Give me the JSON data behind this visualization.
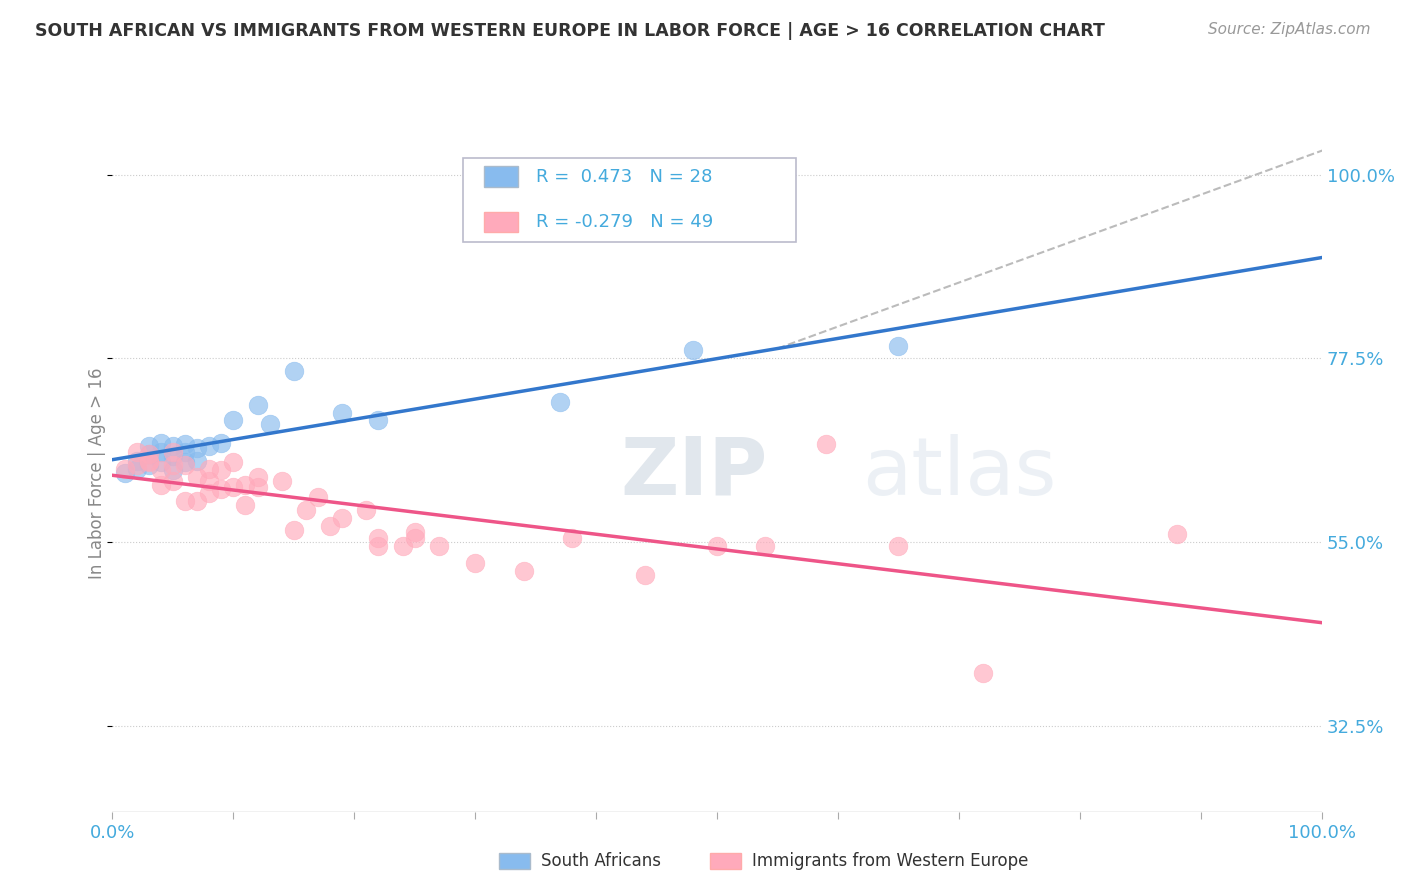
{
  "title": "SOUTH AFRICAN VS IMMIGRANTS FROM WESTERN EUROPE IN LABOR FORCE | AGE > 16 CORRELATION CHART",
  "source": "Source: ZipAtlas.com",
  "ylabel": "In Labor Force | Age > 16",
  "legend1_r": " 0.473",
  "legend1_n": "28",
  "legend2_r": "-0.279",
  "legend2_n": "49",
  "blue_color": "#88BBEE",
  "pink_color": "#FFAABB",
  "trend_blue": "#3377CC",
  "trend_pink": "#EE5588",
  "trend_gray": "#BBBBBB",
  "south_africans_x": [
    0.01,
    0.02,
    0.02,
    0.03,
    0.03,
    0.03,
    0.04,
    0.04,
    0.04,
    0.05,
    0.05,
    0.05,
    0.06,
    0.06,
    0.06,
    0.07,
    0.07,
    0.08,
    0.09,
    0.1,
    0.12,
    0.13,
    0.15,
    0.19,
    0.22,
    0.37,
    0.48,
    0.65
  ],
  "south_africans_y": [
    0.635,
    0.64,
    0.65,
    0.645,
    0.658,
    0.668,
    0.648,
    0.66,
    0.672,
    0.638,
    0.655,
    0.668,
    0.648,
    0.66,
    0.67,
    0.65,
    0.665,
    0.668,
    0.672,
    0.7,
    0.718,
    0.695,
    0.76,
    0.708,
    0.7,
    0.722,
    0.785,
    0.79
  ],
  "immigrants_x": [
    0.01,
    0.02,
    0.02,
    0.03,
    0.03,
    0.03,
    0.04,
    0.04,
    0.05,
    0.05,
    0.05,
    0.06,
    0.06,
    0.07,
    0.07,
    0.08,
    0.08,
    0.08,
    0.09,
    0.09,
    0.1,
    0.1,
    0.11,
    0.11,
    0.12,
    0.12,
    0.14,
    0.15,
    0.16,
    0.17,
    0.18,
    0.19,
    0.21,
    0.22,
    0.22,
    0.24,
    0.25,
    0.25,
    0.27,
    0.3,
    0.34,
    0.38,
    0.44,
    0.5,
    0.54,
    0.59,
    0.65,
    0.72,
    0.88
  ],
  "immigrants_y": [
    0.64,
    0.66,
    0.645,
    0.65,
    0.648,
    0.658,
    0.62,
    0.638,
    0.625,
    0.645,
    0.66,
    0.6,
    0.645,
    0.6,
    0.63,
    0.61,
    0.625,
    0.64,
    0.615,
    0.638,
    0.618,
    0.648,
    0.595,
    0.62,
    0.618,
    0.63,
    0.625,
    0.565,
    0.59,
    0.605,
    0.57,
    0.58,
    0.59,
    0.545,
    0.555,
    0.545,
    0.562,
    0.555,
    0.545,
    0.525,
    0.515,
    0.555,
    0.51,
    0.545,
    0.545,
    0.67,
    0.545,
    0.39,
    0.56
  ],
  "xlim": [
    0.0,
    1.0
  ],
  "ylim": [
    0.22,
    1.05
  ],
  "ytick_positions": [
    0.325,
    0.55,
    0.775,
    1.0
  ],
  "ytick_labels": [
    "32.5%",
    "55.0%",
    "77.5%",
    "100.0%"
  ],
  "watermark_zip": "ZIP",
  "watermark_atlas": "atlas",
  "background_color": "#FFFFFF",
  "grid_color": "#CCCCCC",
  "text_color": "#333333",
  "axis_color": "#44AADD"
}
